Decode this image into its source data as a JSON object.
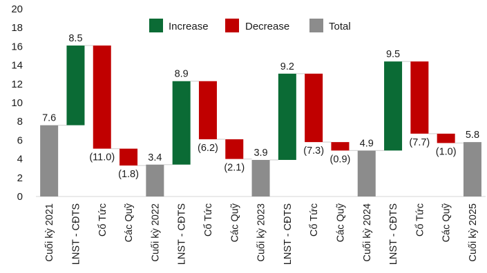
{
  "chart_data": {
    "type": "bar",
    "subtype": "waterfall",
    "title": "",
    "xlabel": "",
    "ylabel": "",
    "ylim": [
      0,
      20
    ],
    "ytick_step": 2,
    "grid": false,
    "legend_position": "top-center",
    "legend": [
      {
        "key": "increase",
        "label": "Increase",
        "color": "#0b6b35"
      },
      {
        "key": "decrease",
        "label": "Decrease",
        "color": "#c00000"
      },
      {
        "key": "total",
        "label": "Total",
        "color": "#8c8c8c"
      }
    ],
    "bars": [
      {
        "category": "Cuối kỳ 2021",
        "kind": "total",
        "base": 0,
        "top": 7.6,
        "label": "7.6"
      },
      {
        "category": "LNST - CĐTS",
        "kind": "increase",
        "base": 7.6,
        "top": 16.1,
        "label": "8.5"
      },
      {
        "category": "Cổ Tức",
        "kind": "decrease",
        "base": 5.1,
        "top": 16.1,
        "label": "(11.0)"
      },
      {
        "category": "Các Quỹ",
        "kind": "decrease",
        "base": 3.3,
        "top": 5.1,
        "label": "(1.8)"
      },
      {
        "category": "Cuối kỳ 2022",
        "kind": "total",
        "base": 0,
        "top": 3.4,
        "label": "3.4"
      },
      {
        "category": "LNST - CĐTS",
        "kind": "increase",
        "base": 3.4,
        "top": 12.3,
        "label": "8.9"
      },
      {
        "category": "Cổ Tức",
        "kind": "decrease",
        "base": 6.1,
        "top": 12.3,
        "label": "(6.2)"
      },
      {
        "category": "Các Quỹ",
        "kind": "decrease",
        "base": 4.0,
        "top": 6.1,
        "label": "(2.1)"
      },
      {
        "category": "Cuối kỳ 2023",
        "kind": "total",
        "base": 0,
        "top": 3.9,
        "label": "3.9"
      },
      {
        "category": "LNST - CĐTS",
        "kind": "increase",
        "base": 3.9,
        "top": 13.1,
        "label": "9.2"
      },
      {
        "category": "Cổ Tức",
        "kind": "decrease",
        "base": 5.8,
        "top": 13.1,
        "label": "(7.3)"
      },
      {
        "category": "Các Quỹ",
        "kind": "decrease",
        "base": 4.9,
        "top": 5.8,
        "label": "(0.9)"
      },
      {
        "category": "Cuối kỳ 2024",
        "kind": "total",
        "base": 0,
        "top": 4.9,
        "label": "4.9"
      },
      {
        "category": "LNST - CĐTS",
        "kind": "increase",
        "base": 4.9,
        "top": 14.4,
        "label": "9.5"
      },
      {
        "category": "Cổ Tức",
        "kind": "decrease",
        "base": 6.7,
        "top": 14.4,
        "label": "(7.7)"
      },
      {
        "category": "Các Quỹ",
        "kind": "decrease",
        "base": 5.7,
        "top": 6.7,
        "label": "(1.0)"
      },
      {
        "category": "Cuối kỳ 2025",
        "kind": "total",
        "base": 0,
        "top": 5.8,
        "label": "5.8"
      }
    ]
  }
}
